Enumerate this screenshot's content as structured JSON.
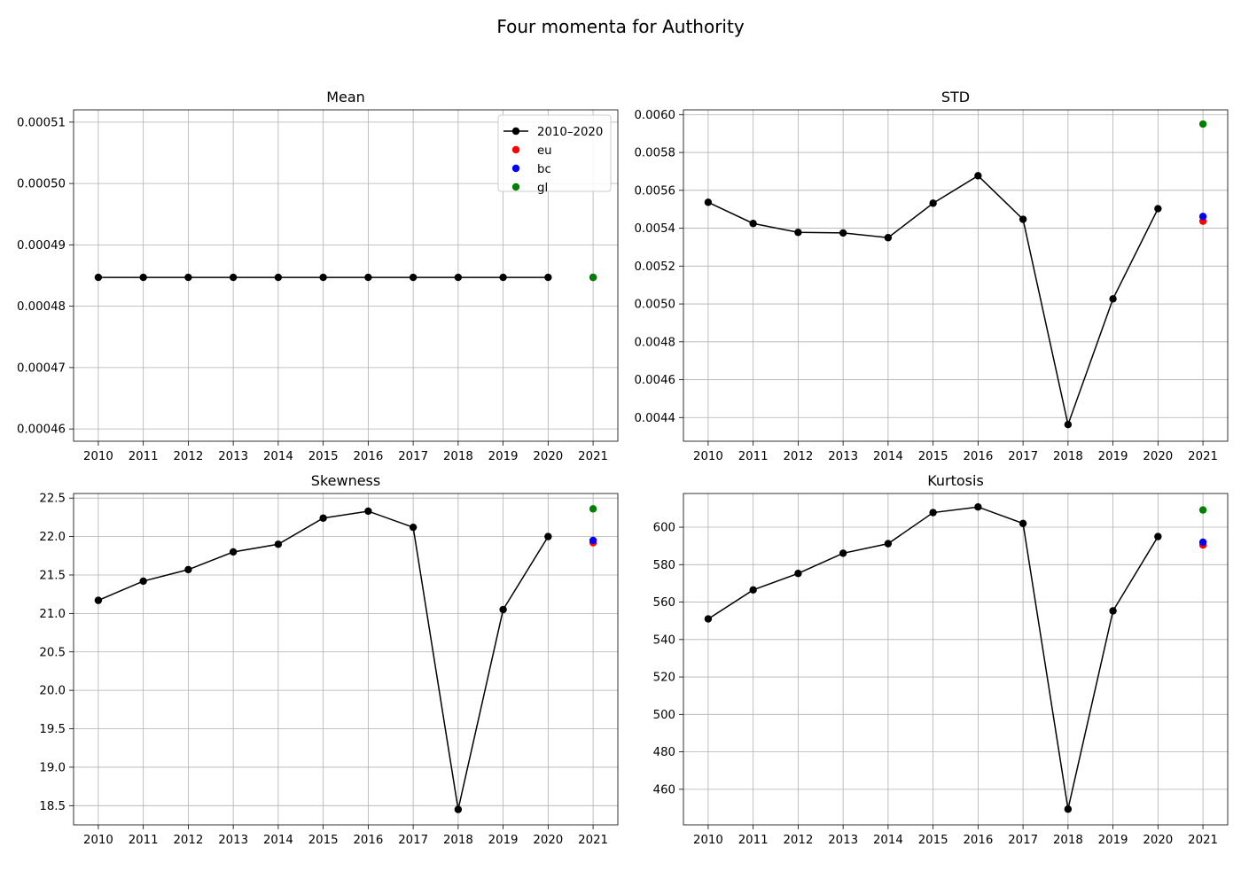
{
  "figure": {
    "title": "Four momenta for Authority"
  },
  "chart_data": [
    {
      "type": "line",
      "title": "Mean",
      "x": [
        2010,
        2011,
        2012,
        2013,
        2014,
        2015,
        2016,
        2017,
        2018,
        2019,
        2020
      ],
      "x_ticks": [
        "2010",
        "2011",
        "2012",
        "2013",
        "2014",
        "2015",
        "2016",
        "2017",
        "2018",
        "2019",
        "2020",
        "2021"
      ],
      "xlim": [
        2009.45,
        2021.55
      ],
      "ylim": [
        0.000458,
        0.000512
      ],
      "y_ticks": [
        "0.00046",
        "0.00047",
        "0.00048",
        "0.00049",
        "0.00050",
        "0.00051"
      ],
      "grid": true,
      "series": [
        {
          "name": "2010–2020",
          "color": "#000000",
          "style": "line-marker",
          "values": [
            0.0004847,
            0.0004847,
            0.0004847,
            0.0004847,
            0.0004847,
            0.0004847,
            0.0004847,
            0.0004847,
            0.0004847,
            0.0004847,
            0.0004847
          ]
        }
      ],
      "points": [
        {
          "name": "eu",
          "color": "#ff0000",
          "x": 2021,
          "y": 0.0004847
        },
        {
          "name": "bc",
          "color": "#0000ff",
          "x": 2021,
          "y": 0.0004847
        },
        {
          "name": "gl",
          "color": "#008000",
          "x": 2021,
          "y": 0.0004847
        }
      ],
      "legend": {
        "placement": "top-right",
        "entries": [
          "2010–2020",
          "eu",
          "bc",
          "gl"
        ]
      }
    },
    {
      "type": "line",
      "title": "STD",
      "x": [
        2010,
        2011,
        2012,
        2013,
        2014,
        2015,
        2016,
        2017,
        2018,
        2019,
        2020
      ],
      "x_ticks": [
        "2010",
        "2011",
        "2012",
        "2013",
        "2014",
        "2015",
        "2016",
        "2017",
        "2018",
        "2019",
        "2020",
        "2021"
      ],
      "xlim": [
        2009.45,
        2021.55
      ],
      "ylim": [
        0.004275,
        0.006025
      ],
      "y_ticks": [
        "0.0044",
        "0.0046",
        "0.0048",
        "0.0050",
        "0.0052",
        "0.0054",
        "0.0056",
        "0.0058",
        "0.0060"
      ],
      "grid": true,
      "series": [
        {
          "name": "2010–2020",
          "color": "#000000",
          "style": "line-marker",
          "values": [
            0.005537,
            0.005425,
            0.005378,
            0.005375,
            0.00535,
            0.005532,
            0.005677,
            0.005447,
            0.004363,
            0.005027,
            0.005503
          ]
        }
      ],
      "points": [
        {
          "name": "eu",
          "color": "#ff0000",
          "x": 2021,
          "y": 0.005437
        },
        {
          "name": "bc",
          "color": "#0000ff",
          "x": 2021,
          "y": 0.005462
        },
        {
          "name": "gl",
          "color": "#008000",
          "x": 2021,
          "y": 0.00595
        }
      ]
    },
    {
      "type": "line",
      "title": "Skewness",
      "x": [
        2010,
        2011,
        2012,
        2013,
        2014,
        2015,
        2016,
        2017,
        2018,
        2019,
        2020
      ],
      "x_ticks": [
        "2010",
        "2011",
        "2012",
        "2013",
        "2014",
        "2015",
        "2016",
        "2017",
        "2018",
        "2019",
        "2020",
        "2021"
      ],
      "xlim": [
        2009.45,
        2021.55
      ],
      "ylim": [
        18.25,
        22.56
      ],
      "y_ticks": [
        "18.5",
        "19.0",
        "19.5",
        "20.0",
        "20.5",
        "21.0",
        "21.5",
        "22.0",
        "22.5"
      ],
      "grid": true,
      "series": [
        {
          "name": "2010–2020",
          "color": "#000000",
          "style": "line-marker",
          "values": [
            21.17,
            21.42,
            21.57,
            21.8,
            21.9,
            22.24,
            22.33,
            22.12,
            18.45,
            21.05,
            22.0
          ]
        }
      ],
      "points": [
        {
          "name": "eu",
          "color": "#ff0000",
          "x": 2021,
          "y": 21.92
        },
        {
          "name": "bc",
          "color": "#0000ff",
          "x": 2021,
          "y": 21.95
        },
        {
          "name": "gl",
          "color": "#008000",
          "x": 2021,
          "y": 22.36
        }
      ]
    },
    {
      "type": "line",
      "title": "Kurtosis",
      "x": [
        2010,
        2011,
        2012,
        2013,
        2014,
        2015,
        2016,
        2017,
        2018,
        2019,
        2020
      ],
      "x_ticks": [
        "2010",
        "2011",
        "2012",
        "2013",
        "2014",
        "2015",
        "2016",
        "2017",
        "2018",
        "2019",
        "2020",
        "2021"
      ],
      "xlim": [
        2009.45,
        2021.55
      ],
      "ylim": [
        441,
        618
      ],
      "y_ticks": [
        "460",
        "480",
        "500",
        "520",
        "540",
        "560",
        "580",
        "600"
      ],
      "grid": true,
      "series": [
        {
          "name": "2010–2020",
          "color": "#000000",
          "style": "line-marker",
          "values": [
            551.0,
            566.5,
            575.3,
            586.1,
            591.2,
            607.8,
            610.8,
            602.0,
            449.4,
            555.3,
            595.0
          ]
        }
      ],
      "points": [
        {
          "name": "eu",
          "color": "#ff0000",
          "x": 2021,
          "y": 590.5
        },
        {
          "name": "bc",
          "color": "#0000ff",
          "x": 2021,
          "y": 592.0
        },
        {
          "name": "gl",
          "color": "#008000",
          "x": 2021,
          "y": 609.2
        }
      ]
    }
  ]
}
